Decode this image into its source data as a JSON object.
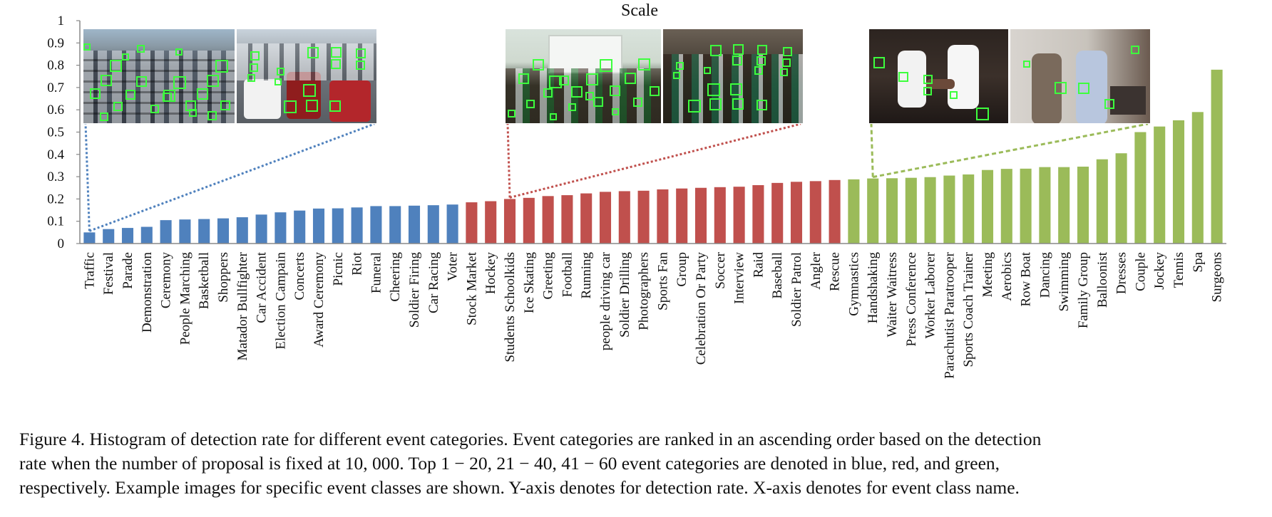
{
  "chart_data": {
    "type": "bar",
    "title": "Scale",
    "xlabel": "",
    "ylabel": "",
    "ylim": [
      0,
      1
    ],
    "yticks": [
      "0",
      "0.1",
      "0.2",
      "0.3",
      "0.4",
      "0.5",
      "0.6",
      "0.7",
      "0.8",
      "0.9",
      "1"
    ],
    "grid": false,
    "colors": {
      "blue": "#4f81bd",
      "red": "#c0504d",
      "green": "#9bbb59"
    },
    "categories": [
      "Traffic",
      "Festival",
      "Parade",
      "Demonstration",
      "Ceremony",
      "People Marching",
      "Basketball",
      "Shoppers",
      "Matador Bullfighter",
      "Car Accident",
      "Election Campain",
      "Concerts",
      "Award Ceremony",
      "Picnic",
      "Riot",
      "Funeral",
      "Cheering",
      "Soldier Firing",
      "Car Racing",
      "Voter",
      "Stock Market",
      "Hockey",
      "Students Schoolkids",
      "Ice Skating",
      "Greeting",
      "Football",
      "Running",
      "people driving car",
      "Soldier Drilling",
      "Photographers",
      "Sports Fan",
      "Group",
      "Celebration Or Party",
      "Soccer",
      "Interview",
      "Raid",
      "Baseball",
      "Soldier Patrol",
      "Angler",
      "Rescue",
      "Gymnastics",
      "Handshaking",
      "Waiter Waitress",
      "Press Conference",
      "Worker Laborer",
      "Parachutist Paratrooper",
      "Sports Coach Trainer",
      "Meeting",
      "Aerobics",
      "Row Boat",
      "Dancing",
      "Swimming",
      "Family Group",
      "Balloonist",
      "Dresses",
      "Couple",
      "Jockey",
      "Tennis",
      "Spa",
      "Surgeons"
    ],
    "values": [
      0.05,
      0.065,
      0.07,
      0.075,
      0.105,
      0.108,
      0.11,
      0.113,
      0.118,
      0.13,
      0.14,
      0.148,
      0.157,
      0.158,
      0.162,
      0.168,
      0.168,
      0.17,
      0.172,
      0.175,
      0.185,
      0.19,
      0.2,
      0.205,
      0.213,
      0.217,
      0.225,
      0.232,
      0.235,
      0.237,
      0.243,
      0.247,
      0.25,
      0.253,
      0.255,
      0.262,
      0.272,
      0.277,
      0.28,
      0.285,
      0.288,
      0.292,
      0.293,
      0.295,
      0.298,
      0.305,
      0.31,
      0.33,
      0.335,
      0.336,
      0.343,
      0.343,
      0.345,
      0.378,
      0.405,
      0.5,
      0.525,
      0.553,
      0.59,
      0.78
    ],
    "groups": [
      {
        "color": "blue",
        "from": 0,
        "to": 19
      },
      {
        "color": "red",
        "from": 20,
        "to": 39
      },
      {
        "color": "green",
        "from": 40,
        "to": 59
      }
    ]
  },
  "callouts": [
    {
      "color": "blue",
      "bar_index": 0,
      "line_style": "dotted",
      "photos": [
        "traffic-photo-left",
        "traffic-photo-right"
      ]
    },
    {
      "color": "red",
      "bar_index": 22,
      "line_style": "dotted",
      "photos": [
        "schoolkids-photo-left",
        "schoolkids-photo-right"
      ]
    },
    {
      "color": "green",
      "bar_index": 41,
      "line_style": "dashed",
      "photos": [
        "handshaking-photo-left",
        "handshaking-photo-right"
      ]
    }
  ],
  "caption": {
    "lines": [
      "Figure 4. Histogram of detection rate for different event categories. Event categories are ranked in an ascending order based on the detection",
      "rate when the number of proposal is fixed at 10, 000. Top 1 − 20, 21 − 40, 41 − 60 event categories are denoted in blue, red, and green,",
      "respectively. Example images for specific event classes are shown. Y-axis denotes for detection rate. X-axis denotes for event class name."
    ]
  }
}
